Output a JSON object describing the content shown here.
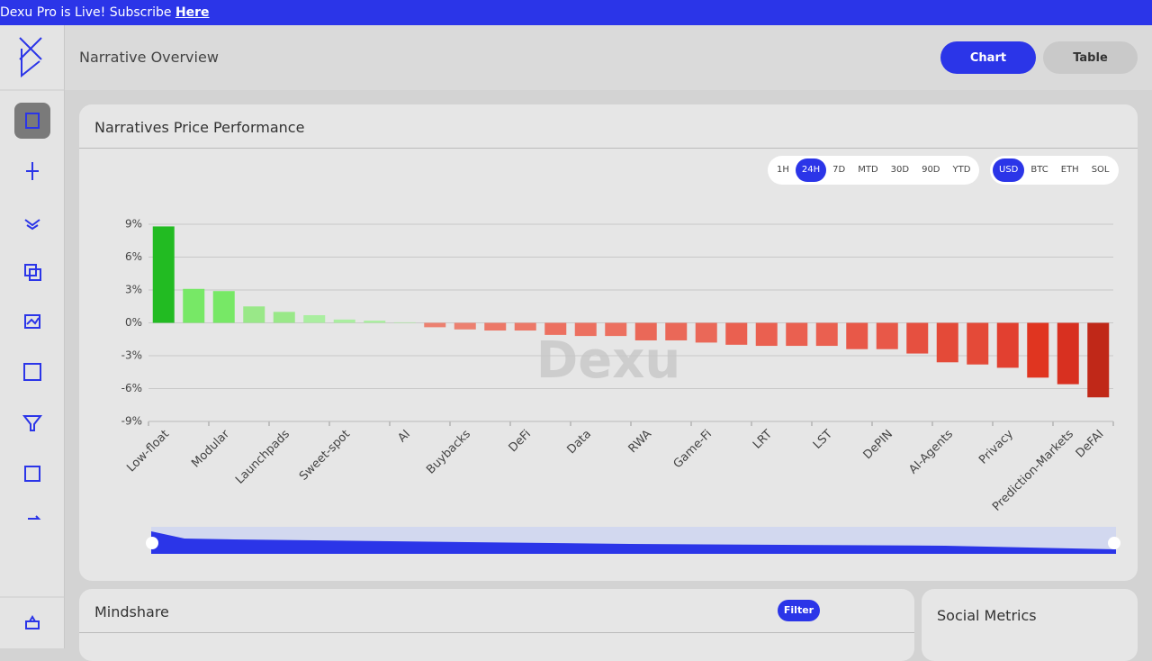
{
  "banner": {
    "text": "Dexu Pro is Live! Subscribe",
    "link": "Here"
  },
  "header": {
    "title": "Narrative Overview",
    "buttons": [
      "Chart",
      "Table"
    ]
  },
  "timeframes": {
    "options": [
      "1H",
      "24H",
      "7D",
      "MTD",
      "30D",
      "90D",
      "YTD"
    ],
    "active": "24H"
  },
  "currencies": {
    "options": [
      "USD",
      "BTC",
      "ETH",
      "SOL"
    ],
    "active": "USD"
  },
  "mindshare": {
    "title": "Mindshare",
    "filter": "Filter"
  },
  "social": {
    "title": "Social Metrics"
  },
  "chart_data": {
    "type": "bar",
    "title": "Narratives Price Performance",
    "watermark": "Dexu",
    "categories": [
      "Low-float",
      null,
      "Modular",
      null,
      "Launchpads",
      null,
      "Sweet-spot",
      null,
      "AI",
      null,
      "Buybacks",
      null,
      "DeFi",
      null,
      "Data",
      null,
      "RWA",
      null,
      "Game-Fi",
      null,
      "LRT",
      null,
      "LST",
      null,
      "DePIN",
      null,
      "AI-Agents",
      null,
      "Privacy",
      null,
      "Prediction-Markets",
      "DeFAI"
    ],
    "values": [
      8.8,
      3.1,
      2.9,
      1.5,
      1.0,
      0.7,
      0.3,
      0.2,
      0.05,
      -0.4,
      -0.6,
      -0.7,
      -0.7,
      -1.1,
      -1.2,
      -1.2,
      -1.6,
      -1.6,
      -1.8,
      -2.0,
      -2.1,
      -2.1,
      -2.1,
      -2.4,
      -2.4,
      -2.8,
      -3.6,
      -3.8,
      -4.1,
      -5.0,
      -5.6,
      -6.8
    ],
    "colors": [
      "#22bb22",
      "#77e866",
      "#77e866",
      "#99e888",
      "#99e888",
      "#aaeea0",
      "#aaeea0",
      "#aaeea0",
      "#aaeea0",
      "#ec8070",
      "#ec8070",
      "#ec7868",
      "#ec7868",
      "#ec7060",
      "#ec7060",
      "#ec7060",
      "#ea6858",
      "#ea6858",
      "#ea6858",
      "#ea6050",
      "#ea6050",
      "#ea6050",
      "#ea6050",
      "#e85848",
      "#e85848",
      "#e65040",
      "#e44a38",
      "#e44a38",
      "#e24030",
      "#e03520",
      "#d83020",
      "#c02818"
    ],
    "ylim": [
      -9,
      9
    ],
    "yticks": [
      {
        "value": -9,
        "label": "-9%"
      },
      {
        "value": -6,
        "label": "-6%"
      },
      {
        "value": -3,
        "label": "-3%"
      },
      {
        "value": 0,
        "label": "0%"
      },
      {
        "value": 3,
        "label": "3%"
      },
      {
        "value": 6,
        "label": "6%"
      },
      {
        "value": 9,
        "label": "9%"
      }
    ],
    "grid": true
  }
}
